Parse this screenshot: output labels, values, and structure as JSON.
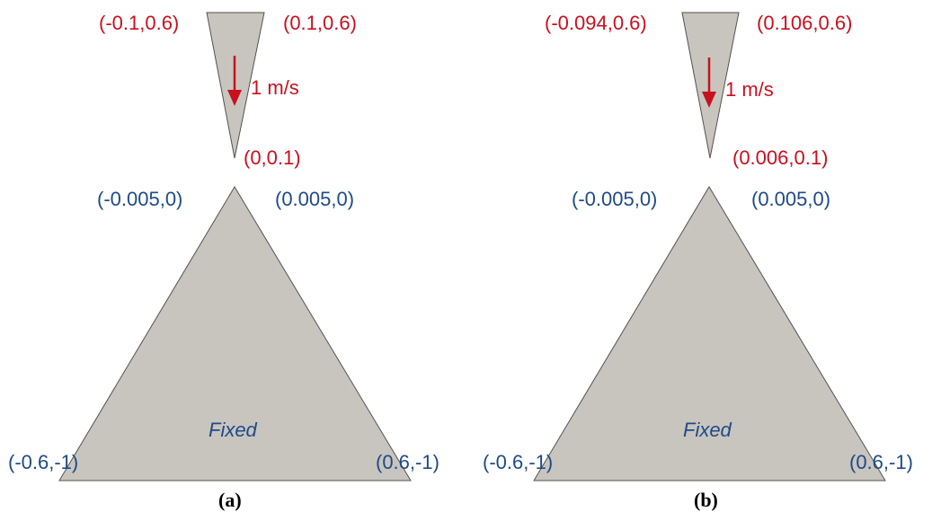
{
  "colors": {
    "shape_fill": "#c8c5bf",
    "shape_stroke": "#55524e",
    "red_text": "#c8101f",
    "blue_text": "#1f4a86",
    "arrow": "#c8101f",
    "caption": "#000000"
  },
  "panels": [
    {
      "id": "a",
      "caption": "(a)",
      "indenter": {
        "top_left_label": "(-0.1,0.6)",
        "top_right_label": "(0.1,0.6)",
        "tip_label": "(0,0.1)",
        "velocity_label": "1 m/s"
      },
      "block": {
        "apex_left_label": "(-0.005,0)",
        "apex_right_label": "(0.005,0)",
        "bottom_left_label": "(-0.6,-1)",
        "bottom_right_label": "(0.6,-1)",
        "boundary_label": "Fixed"
      }
    },
    {
      "id": "b",
      "caption": "(b)",
      "indenter": {
        "top_left_label": "(-0.094,0.6)",
        "top_right_label": "(0.106,0.6)",
        "tip_label": "(0.006,0.1)",
        "velocity_label": "1 m/s"
      },
      "block": {
        "apex_left_label": "(-0.005,0)",
        "apex_right_label": "(0.005,0)",
        "bottom_left_label": "(-0.6,-1)",
        "bottom_right_label": "(0.6,-1)",
        "boundary_label": "Fixed"
      }
    }
  ]
}
